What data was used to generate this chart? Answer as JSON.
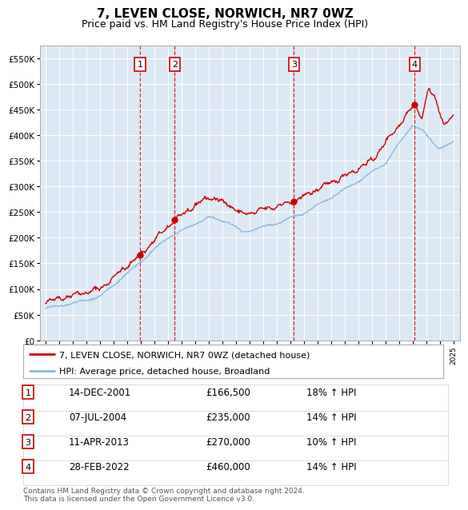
{
  "title": "7, LEVEN CLOSE, NORWICH, NR7 0WZ",
  "subtitle": "Price paid vs. HM Land Registry's House Price Index (HPI)",
  "ylim": [
    0,
    575000
  ],
  "yticks": [
    0,
    50000,
    100000,
    150000,
    200000,
    250000,
    300000,
    350000,
    400000,
    450000,
    500000,
    550000
  ],
  "ytick_labels": [
    "£0",
    "£50K",
    "£100K",
    "£150K",
    "£200K",
    "£250K",
    "£300K",
    "£350K",
    "£400K",
    "£450K",
    "£500K",
    "£550K"
  ],
  "background_color": "#ffffff",
  "plot_bg_color": "#dce9f5",
  "grid_color": "#ffffff",
  "sale_prices": [
    166500,
    235000,
    270000,
    460000
  ],
  "sale_year_floats": [
    2001.958,
    2004.505,
    2013.278,
    2022.163
  ],
  "sale_labels": [
    "1",
    "2",
    "3",
    "4"
  ],
  "sale_info": [
    {
      "label": "1",
      "date": "14-DEC-2001",
      "price": "£166,500",
      "hpi": "18% ↑ HPI"
    },
    {
      "label": "2",
      "date": "07-JUL-2004",
      "price": "£235,000",
      "hpi": "14% ↑ HPI"
    },
    {
      "label": "3",
      "date": "11-APR-2013",
      "price": "£270,000",
      "hpi": "10% ↑ HPI"
    },
    {
      "label": "4",
      "date": "28-FEB-2022",
      "price": "£460,000",
      "hpi": "14% ↑ HPI"
    }
  ],
  "legend_line1": "7, LEVEN CLOSE, NORWICH, NR7 0WZ (detached house)",
  "legend_line2": "HPI: Average price, detached house, Broadland",
  "footer": "Contains HM Land Registry data © Crown copyright and database right 2024.\nThis data is licensed under the Open Government Licence v3.0.",
  "line_color_red": "#cc0000",
  "line_color_blue": "#88b8e0",
  "dashed_vline_color": "#cc0000",
  "title_fontsize": 11,
  "subtitle_fontsize": 9,
  "tick_fontsize": 7.5
}
